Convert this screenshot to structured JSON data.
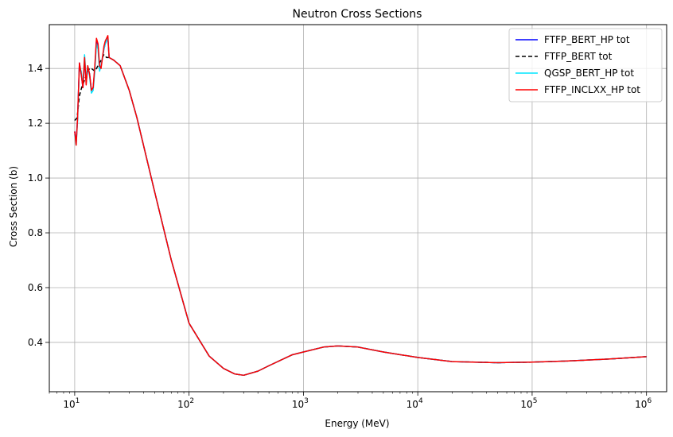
{
  "chart_data": {
    "type": "line",
    "title": "Neutron Cross Sections",
    "xlabel": "Energy (MeV)",
    "ylabel": "Cross Section (b)",
    "xscale": "log",
    "xlim": [
      6,
      1500000
    ],
    "ylim": [
      0.22,
      1.56
    ],
    "grid": true,
    "legend_position": "top-right",
    "x_tick_labels": [
      {
        "value": 10,
        "base": "10",
        "exp": "1"
      },
      {
        "value": 100,
        "base": "10",
        "exp": "2"
      },
      {
        "value": 1000,
        "base": "10",
        "exp": "3"
      },
      {
        "value": 10000,
        "base": "10",
        "exp": "4"
      },
      {
        "value": 100000,
        "base": "10",
        "exp": "5"
      },
      {
        "value": 1000000,
        "base": "10",
        "exp": "6"
      }
    ],
    "y_ticks": [
      0.4,
      0.6,
      0.8,
      1.0,
      1.2,
      1.4
    ],
    "y_tick_labels": [
      "0.4",
      "0.6",
      "0.8",
      "1.0",
      "1.2",
      "1.4"
    ],
    "series": [
      {
        "name": "FTFP_BERT_HP tot",
        "color": "#0000ff",
        "dash": "solid",
        "x": [
          10,
          10.3,
          10.6,
          11,
          11.4,
          11.8,
          12.2,
          12.6,
          13,
          13.5,
          14,
          14.5,
          15,
          15.5,
          16,
          16.5,
          17,
          17.5,
          18,
          18.5,
          19,
          19.5,
          20,
          22,
          25,
          30,
          35,
          50,
          70,
          100,
          150,
          200,
          250,
          300,
          400,
          500,
          800,
          1000,
          1500,
          2000,
          3000,
          5000,
          10000,
          20000,
          50000,
          100000,
          200000,
          500000,
          1000000
        ],
        "y": [
          1.17,
          1.13,
          1.22,
          1.42,
          1.38,
          1.33,
          1.43,
          1.35,
          1.4,
          1.38,
          1.32,
          1.33,
          1.4,
          1.5,
          1.48,
          1.4,
          1.41,
          1.44,
          1.47,
          1.49,
          1.5,
          1.51,
          1.44,
          1.43,
          1.41,
          1.32,
          1.22,
          0.95,
          0.7,
          0.47,
          0.35,
          0.305,
          0.285,
          0.28,
          0.295,
          0.315,
          0.355,
          0.365,
          0.383,
          0.387,
          0.383,
          0.365,
          0.345,
          0.33,
          0.326,
          0.328,
          0.332,
          0.34,
          0.348
        ]
      },
      {
        "name": "FTFP_BERT tot",
        "color": "#000000",
        "dash": "dashed",
        "x": [
          10,
          10.5,
          11,
          11.5,
          12,
          12.5,
          13,
          13.5,
          14,
          15,
          16,
          17,
          18,
          19,
          20,
          22,
          25,
          30,
          35,
          50,
          70,
          100,
          150,
          200,
          250,
          300,
          400,
          500,
          800,
          1000,
          1500,
          2000,
          3000,
          5000,
          10000,
          20000,
          50000,
          100000,
          200000,
          500000,
          1000000
        ],
        "y": [
          1.21,
          1.22,
          1.3,
          1.33,
          1.35,
          1.37,
          1.39,
          1.4,
          1.4,
          1.39,
          1.41,
          1.43,
          1.45,
          1.44,
          1.44,
          1.43,
          1.41,
          1.32,
          1.22,
          0.95,
          0.7,
          0.47,
          0.35,
          0.305,
          0.285,
          0.28,
          0.295,
          0.315,
          0.355,
          0.365,
          0.383,
          0.387,
          0.383,
          0.365,
          0.345,
          0.33,
          0.326,
          0.328,
          0.332,
          0.34,
          0.348
        ]
      },
      {
        "name": "QGSP_BERT_HP tot",
        "color": "#00e5ff",
        "dash": "solid",
        "x": [
          10,
          10.3,
          10.6,
          11,
          11.4,
          11.8,
          12.2,
          12.6,
          13,
          13.5,
          14,
          14.5,
          15,
          15.5,
          16,
          16.5,
          17,
          17.5,
          18,
          18.5,
          19,
          19.5,
          20,
          22,
          25,
          30,
          35,
          50,
          70,
          100,
          150,
          200,
          250,
          300,
          400,
          500,
          800,
          1000,
          1500,
          2000,
          3000,
          5000,
          10000,
          20000,
          50000,
          100000,
          200000,
          500000,
          1000000
        ],
        "y": [
          1.16,
          1.12,
          1.21,
          1.41,
          1.39,
          1.34,
          1.45,
          1.36,
          1.41,
          1.37,
          1.31,
          1.32,
          1.39,
          1.49,
          1.47,
          1.39,
          1.41,
          1.44,
          1.47,
          1.49,
          1.5,
          1.51,
          1.44,
          1.43,
          1.41,
          1.32,
          1.22,
          0.95,
          0.7,
          0.47,
          0.35,
          0.305,
          0.285,
          0.28,
          0.295,
          0.315,
          0.355,
          0.365,
          0.383,
          0.387,
          0.383,
          0.365,
          0.345,
          0.33,
          0.326,
          0.328,
          0.332,
          0.34,
          0.348
        ]
      },
      {
        "name": "FTFP_INCLXX_HP tot",
        "color": "#ff0000",
        "dash": "solid",
        "x": [
          10,
          10.3,
          10.6,
          11,
          11.4,
          11.8,
          12.2,
          12.6,
          13,
          13.5,
          14,
          14.5,
          15,
          15.5,
          16,
          16.5,
          17,
          17.5,
          18,
          18.5,
          19,
          19.5,
          20,
          22,
          25,
          30,
          35,
          50,
          70,
          100,
          150,
          200,
          250,
          300,
          400,
          500,
          800,
          1000,
          1500,
          2000,
          3000,
          5000,
          10000,
          20000,
          50000,
          100000,
          200000,
          500000,
          1000000
        ],
        "y": [
          1.17,
          1.12,
          1.22,
          1.42,
          1.38,
          1.33,
          1.44,
          1.34,
          1.41,
          1.38,
          1.32,
          1.33,
          1.41,
          1.51,
          1.49,
          1.41,
          1.4,
          1.44,
          1.48,
          1.5,
          1.51,
          1.52,
          1.44,
          1.43,
          1.41,
          1.32,
          1.22,
          0.95,
          0.7,
          0.47,
          0.35,
          0.305,
          0.285,
          0.28,
          0.295,
          0.315,
          0.355,
          0.365,
          0.383,
          0.387,
          0.383,
          0.365,
          0.345,
          0.33,
          0.326,
          0.328,
          0.332,
          0.34,
          0.348
        ]
      }
    ]
  }
}
